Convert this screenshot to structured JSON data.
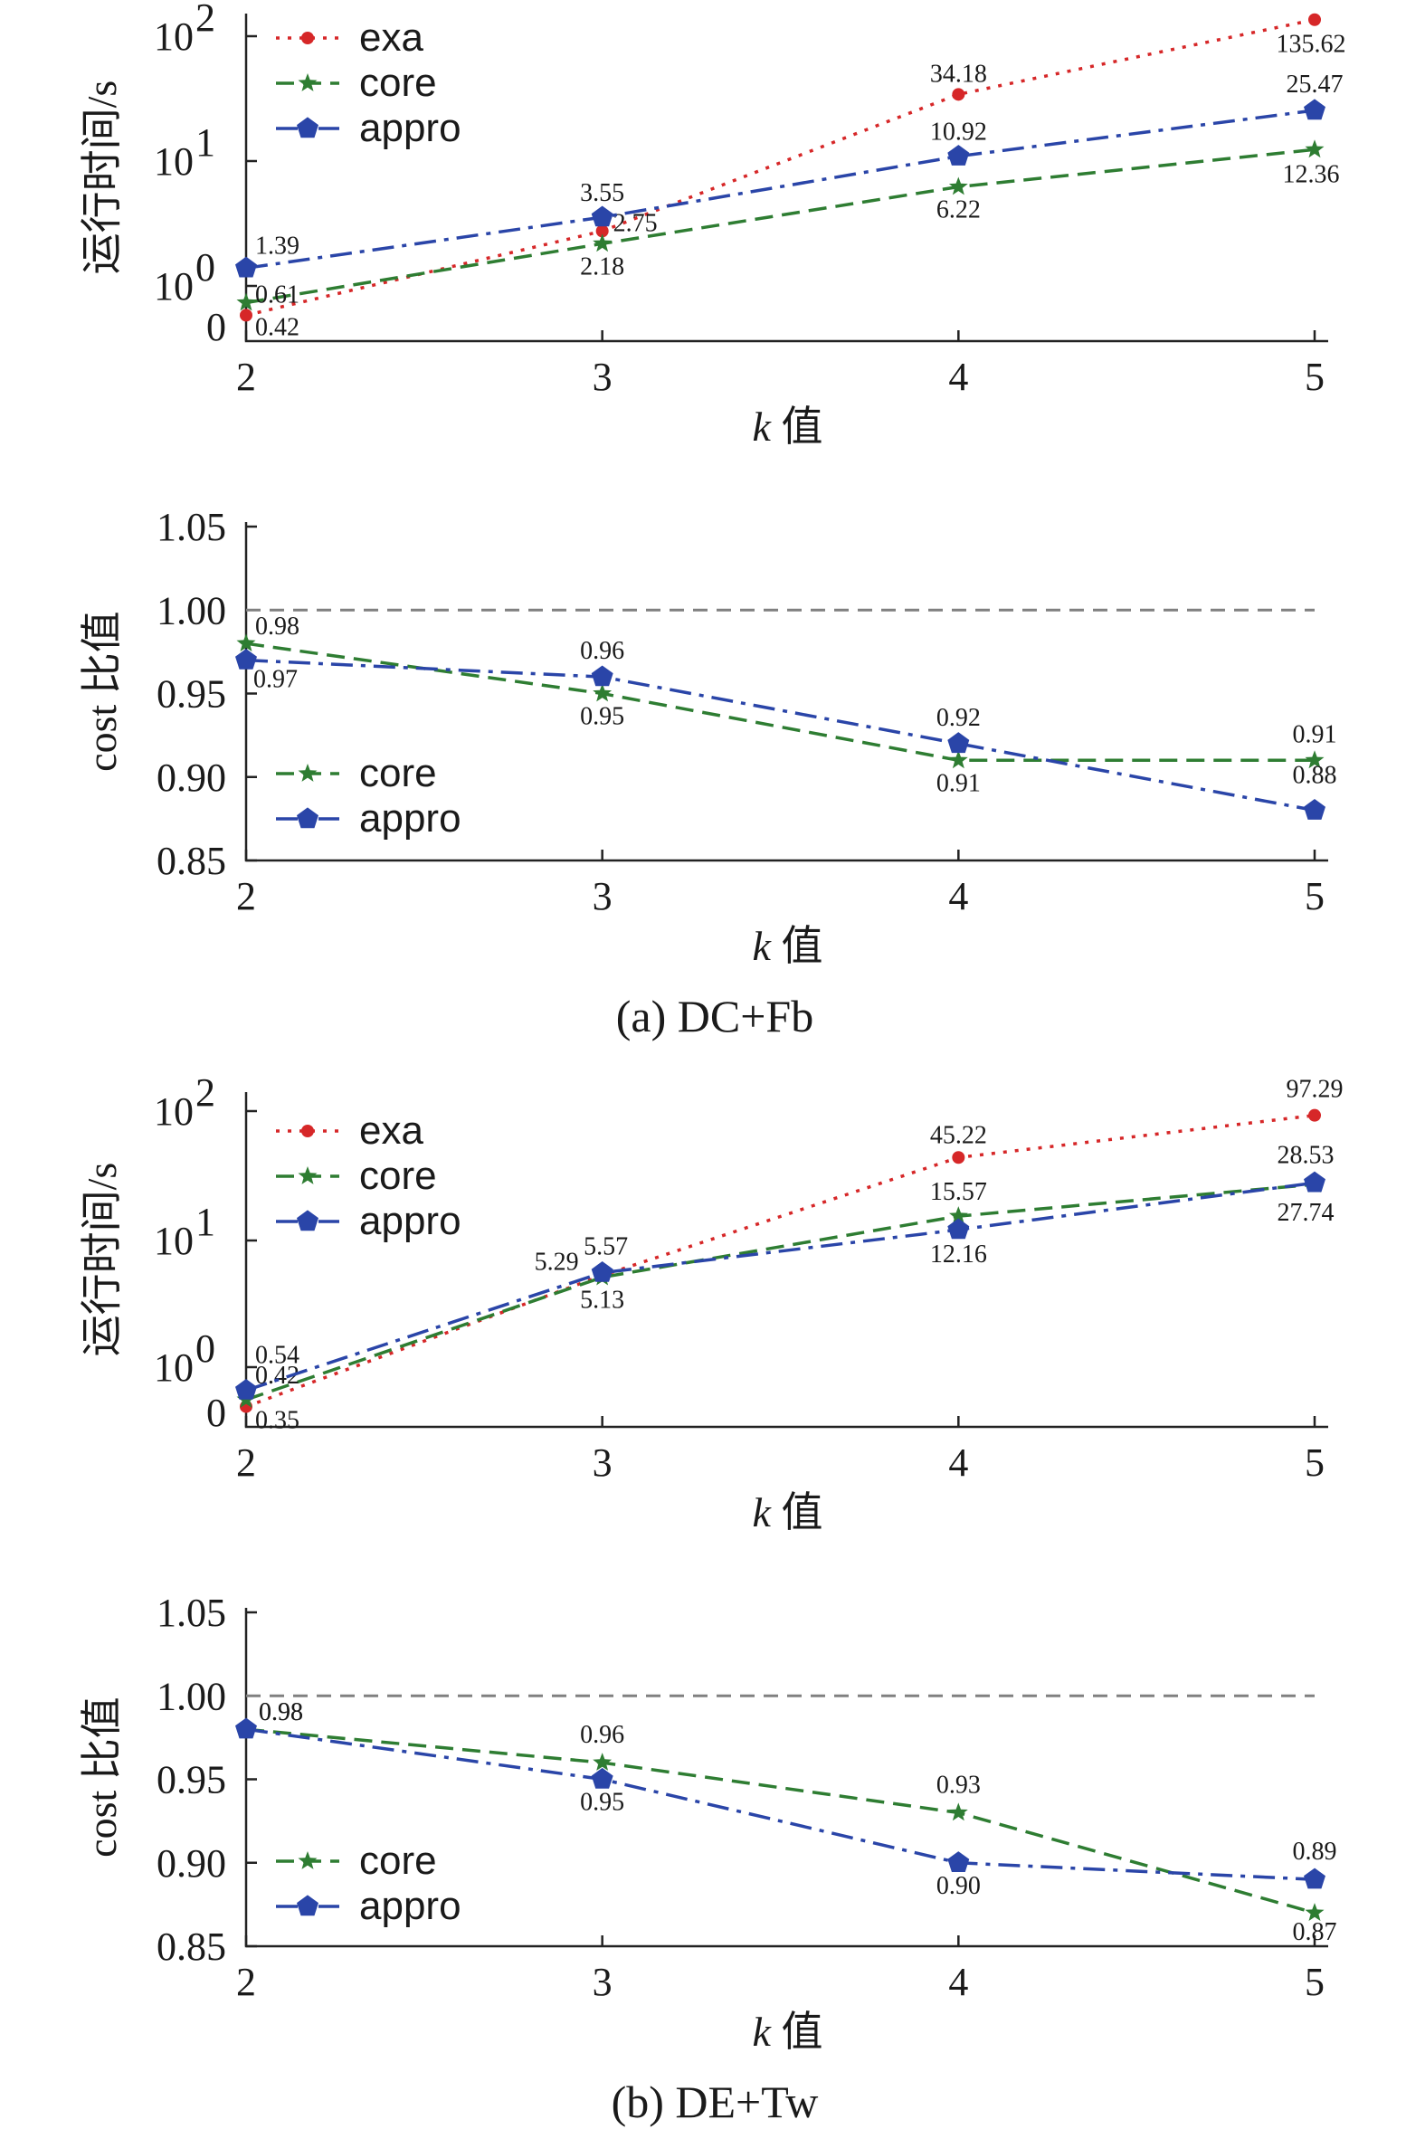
{
  "colors": {
    "exa": "#d62728",
    "core": "#2e7d32",
    "appro": "#2a45a8",
    "axis": "#222222",
    "ref": "#808080"
  },
  "captions": [
    "(a) DC+Fb",
    "(b) DE+Tw"
  ],
  "chart_data": [
    {
      "type": "line",
      "yscale": "log",
      "x": [
        2,
        3,
        4,
        5
      ],
      "ylabel": "运行时间/s",
      "xlabel_italic": "k",
      "xlabel_rest": " 值",
      "xticks": [
        "2",
        "3",
        "4",
        "5"
      ],
      "ytick_labels": [
        "0",
        "10",
        "10",
        "10"
      ],
      "ytick_exps": [
        "",
        "0",
        "1",
        "2"
      ],
      "series": [
        {
          "name": "exa",
          "values": [
            0.42,
            2.75,
            34.18,
            135.62
          ],
          "labels": [
            "0.42",
            "2.75",
            "34.18",
            "135.62"
          ]
        },
        {
          "name": "core",
          "values": [
            0.61,
            2.18,
            6.22,
            12.36
          ],
          "labels": [
            "0.61",
            "2.18",
            "6.22",
            "12.36"
          ]
        },
        {
          "name": "appro",
          "values": [
            1.39,
            3.55,
            10.92,
            25.47
          ],
          "labels": [
            "1.39",
            "3.55",
            "10.92",
            "25.47"
          ]
        }
      ]
    },
    {
      "type": "line",
      "x": [
        2,
        3,
        4,
        5
      ],
      "ylim": [
        0.85,
        1.05
      ],
      "ylabel": "cost 比值",
      "xlabel_italic": "k",
      "xlabel_rest": " 值",
      "xticks": [
        "2",
        "3",
        "4",
        "5"
      ],
      "yticks": [
        "0.85",
        "0.90",
        "0.95",
        "1.00",
        "1.05"
      ],
      "reference_line": 1.0,
      "series": [
        {
          "name": "core",
          "values": [
            0.98,
            0.95,
            0.91,
            0.91
          ],
          "labels": [
            "0.98",
            "0.95",
            "0.91",
            "0.91"
          ]
        },
        {
          "name": "appro",
          "values": [
            0.97,
            0.96,
            0.92,
            0.88
          ],
          "labels": [
            "0.97",
            "0.96",
            "0.92",
            "0.88"
          ]
        }
      ]
    },
    {
      "type": "line",
      "yscale": "log",
      "x": [
        2,
        3,
        4,
        5
      ],
      "ylabel": "运行时间/s",
      "xlabel_italic": "k",
      "xlabel_rest": " 值",
      "xticks": [
        "2",
        "3",
        "4",
        "5"
      ],
      "ytick_labels": [
        "0",
        "10",
        "10",
        "10"
      ],
      "ytick_exps": [
        "",
        "0",
        "1",
        "2"
      ],
      "series": [
        {
          "name": "exa",
          "values": [
            0.35,
            5.29,
            45.22,
            97.29
          ],
          "labels": [
            "0.35",
            "5.29",
            "45.22",
            "97.29"
          ]
        },
        {
          "name": "core",
          "values": [
            0.42,
            5.13,
            15.57,
            27.74
          ],
          "labels": [
            "0.42",
            "5.13",
            "15.57",
            "27.74"
          ]
        },
        {
          "name": "appro",
          "values": [
            0.54,
            5.57,
            12.16,
            28.53
          ],
          "labels": [
            "0.54",
            "5.57",
            "12.16",
            "28.53"
          ]
        }
      ]
    },
    {
      "type": "line",
      "x": [
        2,
        3,
        4,
        5
      ],
      "ylim": [
        0.85,
        1.05
      ],
      "ylabel": "cost 比值",
      "xlabel_italic": "k",
      "xlabel_rest": " 值",
      "xticks": [
        "2",
        "3",
        "4",
        "5"
      ],
      "yticks": [
        "0.85",
        "0.90",
        "0.95",
        "1.00",
        "1.05"
      ],
      "reference_line": 1.0,
      "series": [
        {
          "name": "core",
          "values": [
            0.98,
            0.96,
            0.93,
            0.87
          ],
          "labels": [
            "0.98",
            "0.96",
            "0.93",
            "0.87"
          ]
        },
        {
          "name": "appro",
          "values": [
            0.98,
            0.95,
            0.9,
            0.89
          ],
          "labels": [
            "0.98",
            "0.95",
            "0.90",
            "0.89"
          ]
        }
      ]
    }
  ]
}
